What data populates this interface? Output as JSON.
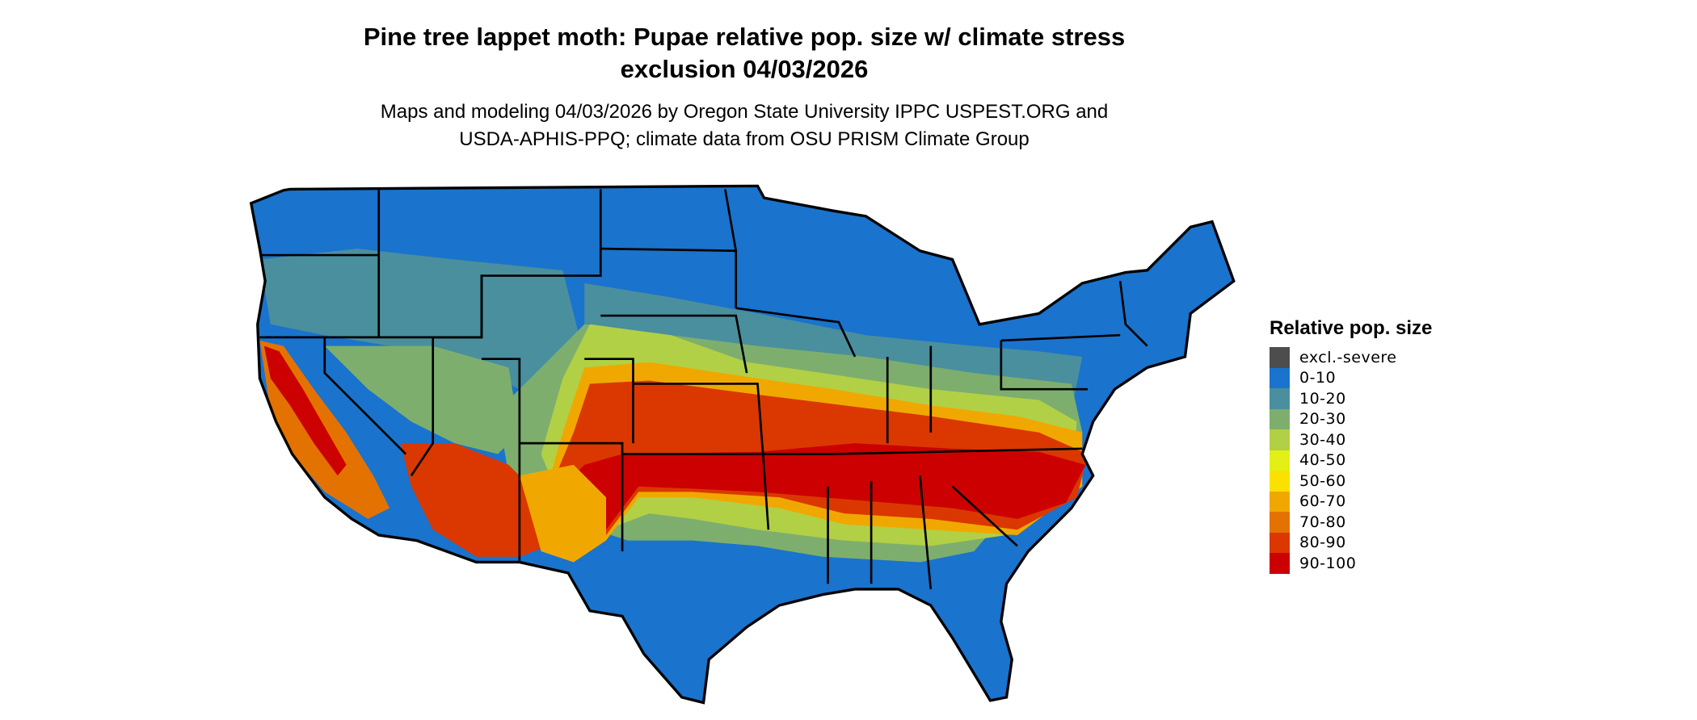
{
  "title": {
    "line1": "Pine tree lappet moth: Pupae relative pop. size w/ climate stress",
    "line2": "exclusion 04/03/2026"
  },
  "subtitle": {
    "line1": "Maps and modeling 04/03/2026 by Oregon State University IPPC USPEST.ORG and",
    "line2": "USDA-APHIS-PPQ; climate data from OSU PRISM Climate Group"
  },
  "legend": {
    "title": "Relative pop. size",
    "items": [
      {
        "label": "excl.-severe",
        "color": "#4d4d4d"
      },
      {
        "label": "0-10",
        "color": "#1a73cc"
      },
      {
        "label": "10-20",
        "color": "#4a8f9d"
      },
      {
        "label": "20-30",
        "color": "#7eae6e"
      },
      {
        "label": "30-40",
        "color": "#b2d045"
      },
      {
        "label": "40-50",
        "color": "#e2f015"
      },
      {
        "label": "50-60",
        "color": "#fae100"
      },
      {
        "label": "60-70",
        "color": "#f0a800"
      },
      {
        "label": "70-80",
        "color": "#e47200"
      },
      {
        "label": "80-90",
        "color": "#da3800"
      },
      {
        "label": "90-100",
        "color": "#cc0000"
      }
    ]
  }
}
